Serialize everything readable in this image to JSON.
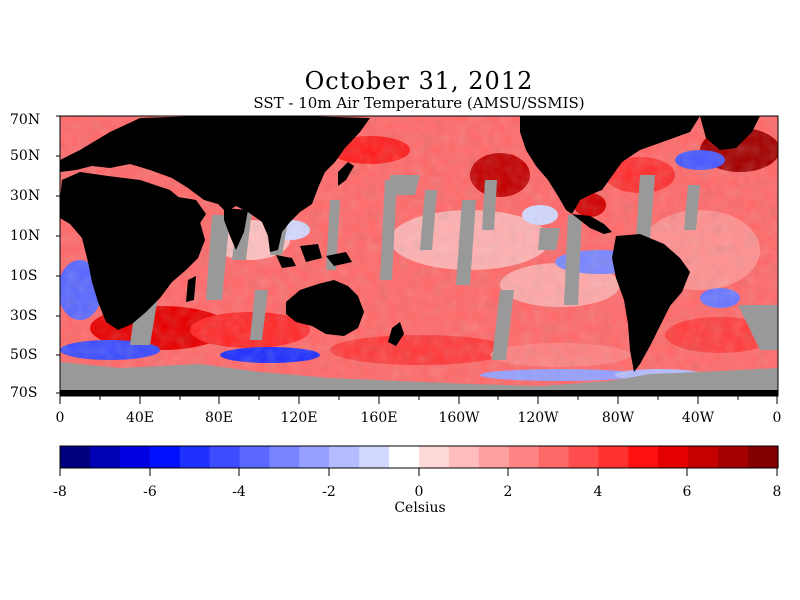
{
  "title": "October 31, 2012",
  "subtitle": "SST - 10m Air Temperature (AMSU/SSMIS)",
  "lat_labels": [
    "70N",
    "50N",
    "30N",
    "10N",
    "10S",
    "30S",
    "50S",
    "70S"
  ],
  "lon_labels": [
    "0",
    "40E",
    "80E",
    "120E",
    "160E",
    "160W",
    "120W",
    "80W",
    "40W",
    "0"
  ],
  "colorbar": {
    "ticks": [
      "-8",
      "-6",
      "-4",
      "-2",
      "0",
      "2",
      "4",
      "6",
      "8"
    ],
    "unit": "Celsius",
    "min": -8,
    "max": 8,
    "colors": [
      "#00007f",
      "#0000b4",
      "#0000e0",
      "#0010ff",
      "#2030ff",
      "#3c4cff",
      "#5a68ff",
      "#7884ff",
      "#96a0ff",
      "#b4bcff",
      "#d2d8ff",
      "#ffffff",
      "#ffd8d8",
      "#ffbcbc",
      "#ffa0a0",
      "#ff8484",
      "#ff6868",
      "#ff4c4c",
      "#ff3030",
      "#ff1010",
      "#e40000",
      "#c40000",
      "#a40000",
      "#840000"
    ]
  },
  "colors": {
    "land": "#000000",
    "no_data": "#999999",
    "warm": "#ff3030",
    "cool": "#4a5aff"
  }
}
